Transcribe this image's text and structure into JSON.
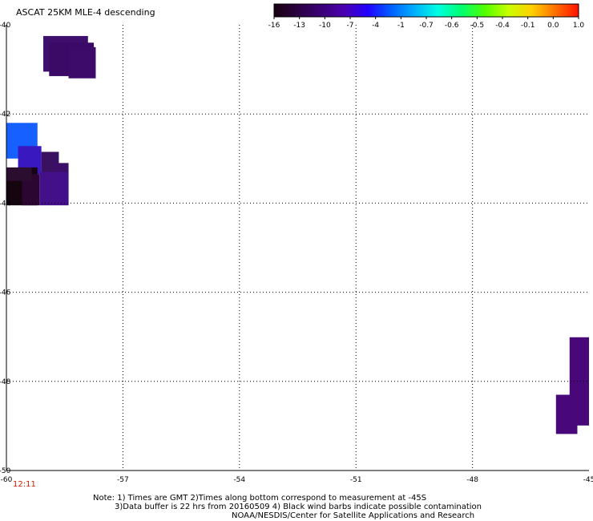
{
  "title": "ASCAT 25KM MLE-4 descending",
  "time_label": "12:11",
  "time_color": "#cc2200",
  "notes": [
    "Note: 1) Times are GMT 2)Times along bottom correspond to measurement at -45S",
    "3)Data buffer is 22 hrs from 20160509 4) Black wind barbs indicate possible contamination",
    "NOAA/NESDIS/Center for Satellite Applications and Research"
  ],
  "colorbar": {
    "labels": [
      "-16",
      "-13",
      "-10",
      "-7",
      "-4",
      "-1",
      "-0.7",
      "-0.6",
      "-0.5",
      "-0.4",
      "-0.1",
      "0.0",
      "1.0"
    ],
    "colors": [
      "#1a0010",
      "#2a0040",
      "#3a0075",
      "#4a00b0",
      "#2200ff",
      "#0060ff",
      "#00b0ff",
      "#00ffe0",
      "#00ff70",
      "#50ff00",
      "#c8ff00",
      "#ffd000",
      "#ff7000",
      "#ff1000"
    ]
  },
  "chart_data": {
    "type": "heatmap",
    "xlim": [
      -60,
      -45
    ],
    "ylim": [
      -50,
      -40
    ],
    "x_ticks": [
      "-60",
      "-57",
      "-54",
      "-51",
      "-48",
      "-45"
    ],
    "y_ticks": [
      "-40",
      "-42",
      "-44",
      "-46",
      "-48",
      "-50"
    ],
    "x_tick_values": [
      -60,
      -57,
      -54,
      -51,
      -48,
      -45
    ],
    "y_tick_values": [
      -40,
      -42,
      -44,
      -46,
      -48,
      -50
    ],
    "grid": true,
    "cells": [
      {
        "lon": [
          -59.05,
          -57.9
        ],
        "lat": [
          -41.05,
          -40.25
        ],
        "color": "#3f0f6e"
      },
      {
        "lon": [
          -58.9,
          -57.75
        ],
        "lat": [
          -41.15,
          -40.4
        ],
        "color": "#3a0a66"
      },
      {
        "lon": [
          -58.4,
          -57.7
        ],
        "lat": [
          -41.2,
          -40.5
        ],
        "color": "#3d0c6b"
      },
      {
        "lon": [
          -60.0,
          -59.2
        ],
        "lat": [
          -43.0,
          -42.2
        ],
        "color": "#1560ff"
      },
      {
        "lon": [
          -59.7,
          -59.1
        ],
        "lat": [
          -43.35,
          -42.72
        ],
        "color": "#3a18c0"
      },
      {
        "lon": [
          -59.1,
          -58.65
        ],
        "lat": [
          -43.5,
          -42.85
        ],
        "color": "#3a1060"
      },
      {
        "lon": [
          -58.8,
          -58.4
        ],
        "lat": [
          -44.0,
          -43.1
        ],
        "color": "#3c0e68"
      },
      {
        "lon": [
          -59.15,
          -58.4
        ],
        "lat": [
          -44.05,
          -43.3
        ],
        "color": "#44108a"
      },
      {
        "lon": [
          -60.0,
          -59.2
        ],
        "lat": [
          -44.05,
          -43.2
        ],
        "color": "#15050f"
      },
      {
        "lon": [
          -59.6,
          -59.15
        ],
        "lat": [
          -44.05,
          -43.35
        ],
        "color": "#2a0630"
      },
      {
        "lon": [
          -60.0,
          -59.35
        ],
        "lat": [
          -43.5,
          -43.2
        ],
        "color": "#2b0d30"
      },
      {
        "lon": [
          -45.5,
          -45.0
        ],
        "lat": [
          -48.99,
          -47.01
        ],
        "color": "#48087a"
      },
      {
        "lon": [
          -45.85,
          -45.3
        ],
        "lat": [
          -49.18,
          -48.3
        ],
        "color": "#48087a"
      }
    ]
  }
}
